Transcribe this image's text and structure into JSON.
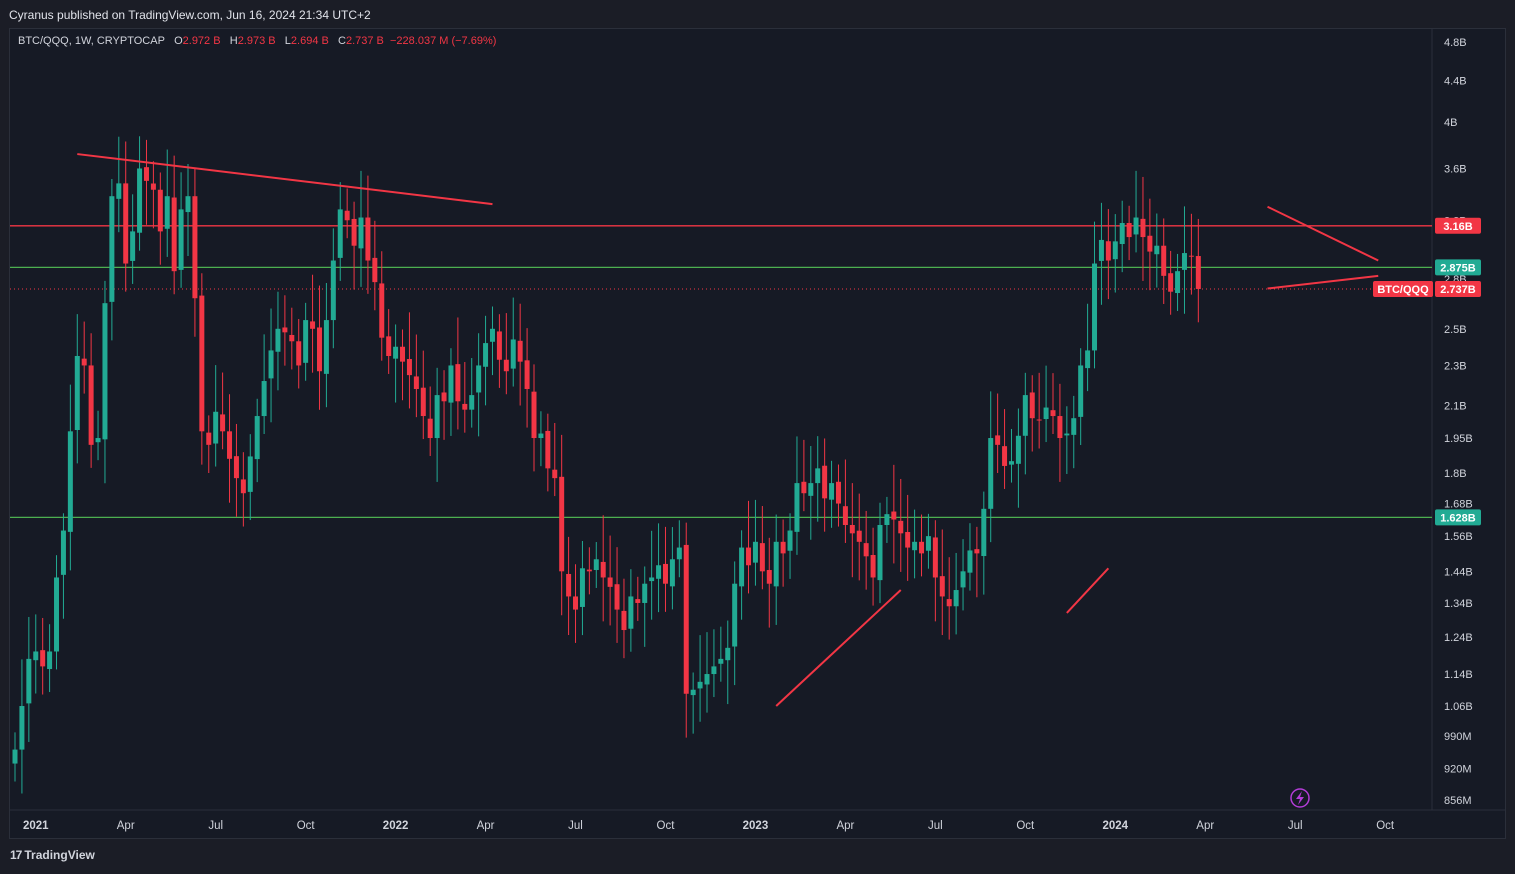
{
  "header": {
    "publish": "Cyranus published on TradingView.com, Jun 16, 2024 21:34 UTC+2"
  },
  "legend": {
    "symbol": "BTC/QQQ, 1W, CRYPTOCAP",
    "o_label": "O",
    "o": "2.972 B",
    "h_label": "H",
    "h": "2.973 B",
    "l_label": "L",
    "l": "2.694 B",
    "c_label": "C",
    "c": "2.737 B",
    "change": "−228.037 M (−7.69%)"
  },
  "footer": {
    "brand": "TradingView",
    "mark": "17"
  },
  "colors": {
    "up": "#22ab94",
    "down": "#f23645",
    "hline_red": "#f23645",
    "hline_green": "#4caf50",
    "background": "#161a25",
    "tag_red": "#f23645",
    "tag_green": "#22ab94"
  },
  "icons": {
    "flash": "lightning-icon"
  },
  "chart_data": {
    "type": "candlestick",
    "scale": "log",
    "ylim": [
      820000000,
      5100000000
    ],
    "y_ticks": [
      {
        "v": 4800000000,
        "label": "4.8B"
      },
      {
        "v": 4400000000,
        "label": "4.4B"
      },
      {
        "v": 4000000000,
        "label": "4B"
      },
      {
        "v": 3600000000,
        "label": "3.6B"
      },
      {
        "v": 3200000000,
        "label": "3.2B"
      },
      {
        "v": 2800000000,
        "label": "2.8B"
      },
      {
        "v": 2500000000,
        "label": "2.5B"
      },
      {
        "v": 2300000000,
        "label": "2.3B"
      },
      {
        "v": 2100000000,
        "label": "2.1B"
      },
      {
        "v": 1950000000,
        "label": "1.95B"
      },
      {
        "v": 1800000000,
        "label": "1.8B"
      },
      {
        "v": 1680000000,
        "label": "1.68B"
      },
      {
        "v": 1560000000,
        "label": "1.56B"
      },
      {
        "v": 1440000000,
        "label": "1.44B"
      },
      {
        "v": 1340000000,
        "label": "1.34B"
      },
      {
        "v": 1240000000,
        "label": "1.24B"
      },
      {
        "v": 1140000000,
        "label": "1.14B"
      },
      {
        "v": 1060000000,
        "label": "1.06B"
      },
      {
        "v": 990000000,
        "label": "990M"
      },
      {
        "v": 920000000,
        "label": "920M"
      },
      {
        "v": 856000000,
        "label": "856M"
      }
    ],
    "x_ticks": [
      {
        "w": 3,
        "label": "2021",
        "year": true
      },
      {
        "w": 16,
        "label": "Apr"
      },
      {
        "w": 29,
        "label": "Jul"
      },
      {
        "w": 42,
        "label": "Oct"
      },
      {
        "w": 55,
        "label": "2022",
        "year": true
      },
      {
        "w": 68,
        "label": "Apr"
      },
      {
        "w": 81,
        "label": "Jul"
      },
      {
        "w": 94,
        "label": "Oct"
      },
      {
        "w": 107,
        "label": "2023",
        "year": true
      },
      {
        "w": 120,
        "label": "Apr"
      },
      {
        "w": 133,
        "label": "Jul"
      },
      {
        "w": 146,
        "label": "Oct"
      },
      {
        "w": 159,
        "label": "2024",
        "year": true
      },
      {
        "w": 172,
        "label": "Apr"
      },
      {
        "w": 185,
        "label": "Jul"
      },
      {
        "w": 198,
        "label": "Oct"
      }
    ],
    "closes": [
      0.96,
      1.06,
      1.18,
      1.2,
      1.16,
      1.2,
      1.42,
      1.58,
      1.98,
      2.35,
      2.3,
      1.92,
      1.95,
      2.65,
      3.38,
      3.48,
      2.9,
      3.12,
      3.6,
      3.5,
      3.43,
      3.12,
      3.38,
      2.85,
      3.28,
      3.38,
      2.68,
      1.98,
      1.92,
      2.07,
      1.98,
      1.86,
      1.78,
      1.72,
      1.87,
      2.05,
      2.22,
      2.38,
      2.5,
      2.48,
      2.43,
      2.3,
      2.55,
      2.5,
      2.27,
      2.55,
      2.92,
      3.28,
      3.2,
      3.02,
      3.22,
      2.92,
      2.78,
      2.45,
      2.35,
      2.4,
      2.32,
      2.25,
      2.18,
      2.05,
      1.95,
      2.15,
      2.12,
      2.3,
      2.12,
      2.08,
      2.15,
      2.3,
      2.42,
      2.5,
      2.33,
      2.27,
      2.44,
      2.32,
      2.18,
      1.95,
      1.97,
      1.82,
      1.78,
      1.44,
      1.36,
      1.32,
      1.45,
      1.44,
      1.48,
      1.42,
      1.39,
      1.32,
      1.26,
      1.36,
      1.34,
      1.4,
      1.42,
      1.46,
      1.4,
      1.48,
      1.52,
      1.09,
      1.1,
      1.12,
      1.14,
      1.16,
      1.18,
      1.21,
      1.4,
      1.52,
      1.46,
      1.54,
      1.44,
      1.4,
      1.54,
      1.5,
      1.58,
      1.76,
      1.72,
      1.76,
      1.82,
      1.7,
      1.76,
      1.68,
      1.6,
      1.57,
      1.54,
      1.49,
      1.42,
      1.6,
      1.64,
      1.62,
      1.57,
      1.52,
      1.54,
      1.5,
      1.56,
      1.42,
      1.36,
      1.33,
      1.38,
      1.44,
      1.51,
      1.5,
      1.66,
      1.95,
      1.92,
      1.83,
      1.85,
      1.96,
      2.15,
      2.04,
      2.03,
      2.09,
      2.05,
      1.95,
      1.97,
      2.04,
      2.3,
      2.38,
      2.9,
      3.06,
      2.92,
      3.05,
      3.18,
      3.08,
      3.22,
      3.08,
      2.98,
      3.02,
      2.82,
      2.72,
      2.85,
      2.97,
      2.95,
      2.737
    ],
    "h_levels": [
      {
        "v": 3160000000,
        "label": "3.16B",
        "color": "red"
      },
      {
        "v": 2875000000,
        "label": "2.875B",
        "color": "green"
      },
      {
        "v": 1628000000,
        "label": "1.628B",
        "color": "green"
      }
    ],
    "price_line": {
      "v": 2737000000,
      "label": "2.737B",
      "symbol": "BTC/QQQ"
    },
    "trendlines": [
      {
        "w1": 9,
        "v1": 3.72,
        "w2": 69,
        "v2": 3.32
      },
      {
        "w1": 181,
        "v1": 3.3,
        "w2": 197,
        "v2": 2.92
      },
      {
        "w1": 181,
        "v1": 2.74,
        "w2": 197,
        "v2": 2.82
      },
      {
        "w1": 110,
        "v1": 1.06,
        "w2": 128,
        "v2": 1.38
      },
      {
        "w1": 152,
        "v1": 1.31,
        "w2": 158,
        "v2": 1.45
      }
    ]
  }
}
